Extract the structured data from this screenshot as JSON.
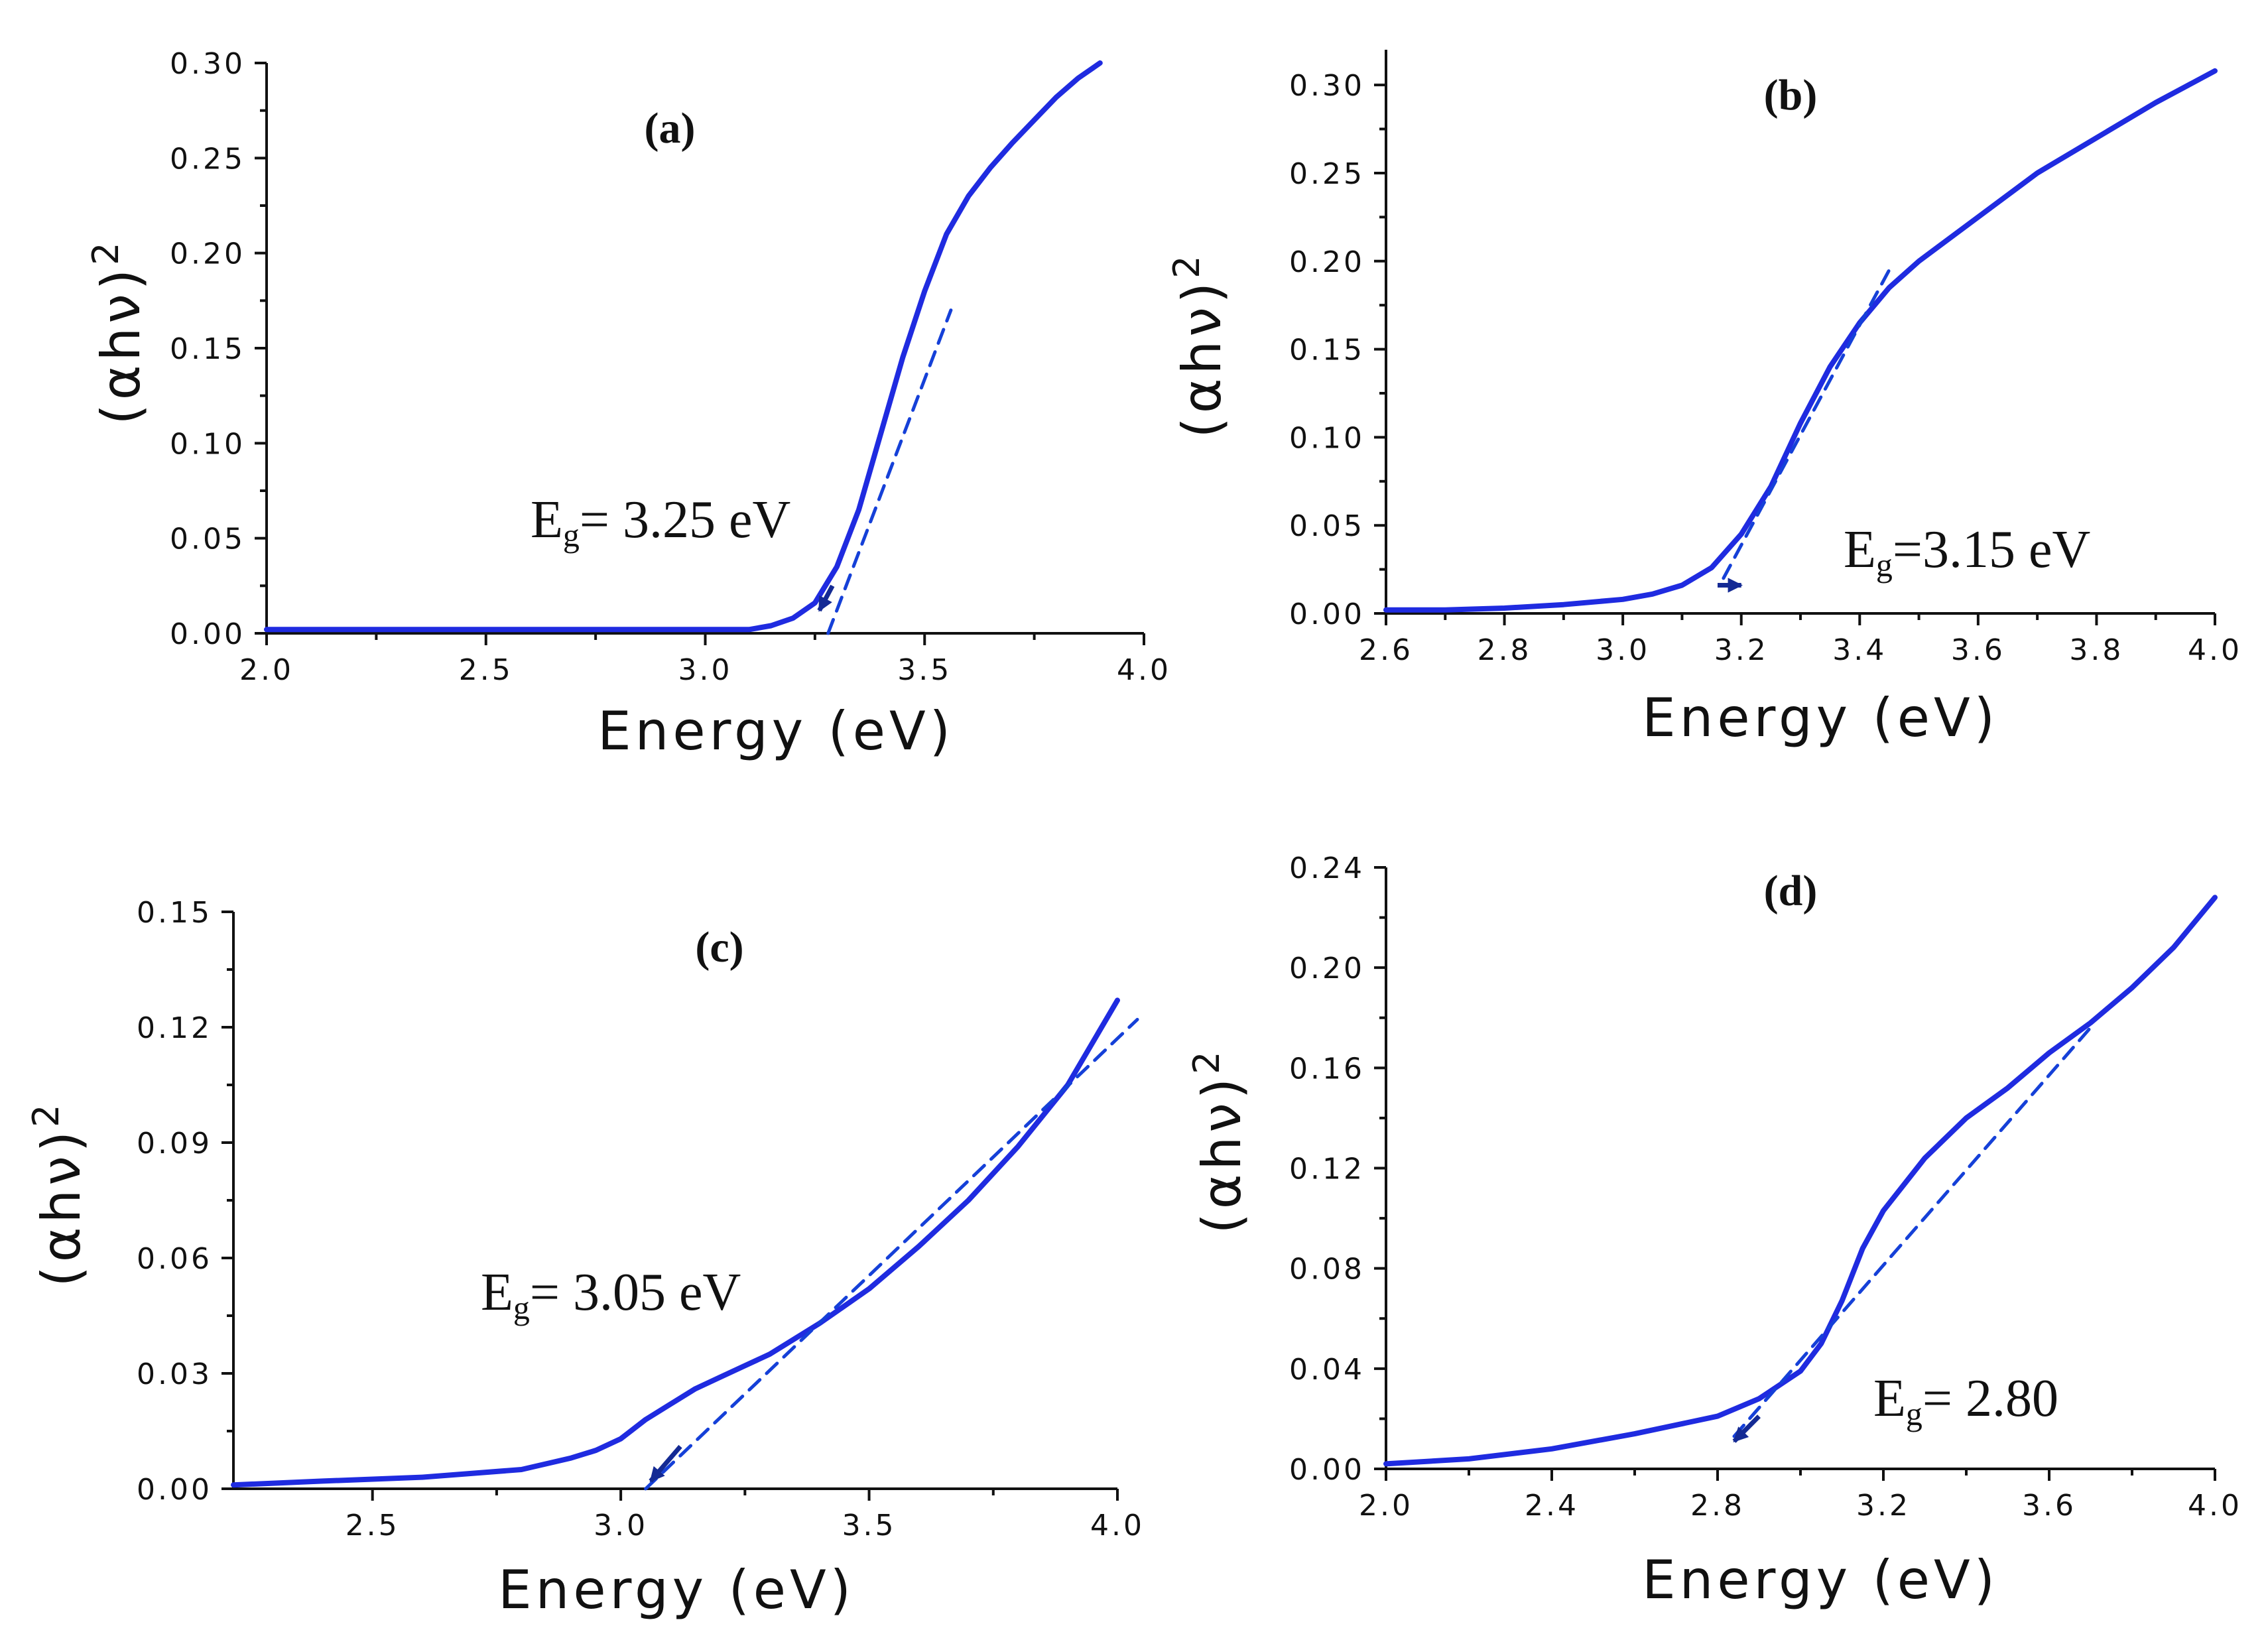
{
  "chart_data": [
    {
      "id": "a",
      "type": "line",
      "panel_label": "(a)",
      "xlabel": "Energy (eV)",
      "ylabel": "(αhν)",
      "ylabel_sup": "2",
      "xlim": [
        2.0,
        4.0
      ],
      "ylim": [
        0.0,
        0.3
      ],
      "xticks": [
        2.0,
        2.5,
        3.0,
        3.5,
        4.0
      ],
      "xtick_labels": [
        "2.0",
        "2.5",
        "3.0",
        "3.5",
        "4.0"
      ],
      "yticks": [
        0.0,
        0.05,
        0.1,
        0.15,
        0.2,
        0.25,
        0.3
      ],
      "ytick_labels": [
        "0.00",
        "0.05",
        "0.10",
        "0.15",
        "0.20",
        "0.25",
        "0.30"
      ],
      "series": [
        {
          "name": "data",
          "style": "solid",
          "x": [
            2.0,
            2.5,
            3.0,
            3.1,
            3.15,
            3.2,
            3.25,
            3.3,
            3.35,
            3.4,
            3.45,
            3.5,
            3.55,
            3.6,
            3.65,
            3.7,
            3.75,
            3.8,
            3.85,
            3.9
          ],
          "y": [
            0.002,
            0.002,
            0.002,
            0.002,
            0.004,
            0.008,
            0.016,
            0.035,
            0.065,
            0.105,
            0.145,
            0.18,
            0.21,
            0.23,
            0.245,
            0.258,
            0.27,
            0.282,
            0.292,
            0.3
          ]
        },
        {
          "name": "fit",
          "style": "dashed",
          "x": [
            3.28,
            3.56
          ],
          "y": [
            0.0,
            0.17
          ]
        }
      ],
      "annotation": {
        "text_main": "E",
        "text_sub": "g",
        "text_rest": "= 3.25 eV",
        "x": 3.25,
        "y": 0.0
      },
      "arrow": {
        "x1": 3.29,
        "y1": 0.025,
        "x2": 3.26,
        "y2": 0.012
      }
    },
    {
      "id": "b",
      "type": "line",
      "panel_label": "(b)",
      "xlabel": "Energy (eV)",
      "ylabel": "(αhν)",
      "ylabel_sup": "2",
      "xlim": [
        2.6,
        4.0
      ],
      "ylim": [
        0.0,
        0.32
      ],
      "xticks": [
        2.6,
        2.8,
        3.0,
        3.2,
        3.4,
        3.6,
        3.8,
        4.0
      ],
      "xtick_labels": [
        "2.6",
        "2.8",
        "3.0",
        "3.2",
        "3.4",
        "3.6",
        "3.8",
        "4.0"
      ],
      "yticks": [
        0.0,
        0.05,
        0.1,
        0.15,
        0.2,
        0.25,
        0.3
      ],
      "ytick_labels": [
        "0.00",
        "0.05",
        "0.10",
        "0.15",
        "0.20",
        "0.25",
        "0.30"
      ],
      "series": [
        {
          "name": "data",
          "style": "solid",
          "x": [
            2.6,
            2.7,
            2.8,
            2.9,
            3.0,
            3.05,
            3.1,
            3.15,
            3.2,
            3.25,
            3.3,
            3.35,
            3.4,
            3.45,
            3.5,
            3.6,
            3.7,
            3.8,
            3.9,
            4.0
          ],
          "y": [
            0.002,
            0.002,
            0.003,
            0.005,
            0.008,
            0.011,
            0.016,
            0.026,
            0.045,
            0.072,
            0.108,
            0.14,
            0.165,
            0.185,
            0.2,
            0.225,
            0.25,
            0.27,
            0.29,
            0.308
          ]
        },
        {
          "name": "fit",
          "style": "dashed",
          "x": [
            3.17,
            3.45
          ],
          "y": [
            0.02,
            0.195
          ]
        }
      ],
      "annotation": {
        "text_main": "E",
        "text_sub": "g",
        "text_rest": "=3.15 eV",
        "x": 3.15,
        "y": 0.0
      },
      "arrow": {
        "x1": 3.16,
        "y1": 0.016,
        "x2": 3.2,
        "y2": 0.016
      }
    },
    {
      "id": "c",
      "type": "line",
      "panel_label": "(c)",
      "xlabel": "Energy (eV)",
      "ylabel": "(αhν)",
      "ylabel_sup": "2",
      "xlim": [
        2.22,
        4.0
      ],
      "ylim": [
        0.0,
        0.15
      ],
      "xticks": [
        2.5,
        3.0,
        3.5,
        4.0
      ],
      "xtick_labels": [
        "2.5",
        "3.0",
        "3.5",
        "4.0"
      ],
      "yticks": [
        0.0,
        0.03,
        0.06,
        0.09,
        0.12,
        0.15
      ],
      "ytick_labels": [
        "0.00",
        "0.03",
        "0.06",
        "0.09",
        "0.12",
        "0.15"
      ],
      "series": [
        {
          "name": "data",
          "style": "solid",
          "x": [
            2.22,
            2.4,
            2.6,
            2.8,
            2.9,
            2.95,
            3.0,
            3.05,
            3.1,
            3.15,
            3.2,
            3.25,
            3.3,
            3.4,
            3.5,
            3.6,
            3.7,
            3.8,
            3.9,
            4.0
          ],
          "y": [
            0.001,
            0.002,
            0.003,
            0.005,
            0.008,
            0.01,
            0.013,
            0.018,
            0.022,
            0.026,
            0.029,
            0.032,
            0.035,
            0.043,
            0.052,
            0.063,
            0.075,
            0.089,
            0.105,
            0.127
          ]
        },
        {
          "name": "fit",
          "style": "dashed",
          "x": [
            3.05,
            4.04
          ],
          "y": [
            0.0,
            0.122
          ]
        }
      ],
      "annotation": {
        "text_main": "E",
        "text_sub": "g",
        "text_rest": "= 3.05 eV",
        "x": 3.05,
        "y": 0.0
      },
      "arrow": {
        "x1": 3.12,
        "y1": 0.011,
        "x2": 3.06,
        "y2": 0.002
      }
    },
    {
      "id": "d",
      "type": "line",
      "panel_label": "(d)",
      "xlabel": "Energy (eV)",
      "ylabel": "(αhν)",
      "ylabel_sup": "2",
      "xlim": [
        2.0,
        4.0
      ],
      "ylim": [
        0.0,
        0.24
      ],
      "xticks": [
        2.0,
        2.4,
        2.8,
        3.2,
        3.6,
        4.0
      ],
      "xtick_labels": [
        "2.0",
        "2.4",
        "2.8",
        "3.2",
        "3.6",
        "4.0"
      ],
      "yticks": [
        0.0,
        0.04,
        0.08,
        0.12,
        0.16,
        0.2,
        0.24
      ],
      "ytick_labels": [
        "0.00",
        "0.04",
        "0.08",
        "0.12",
        "0.16",
        "0.20",
        "0.24"
      ],
      "series": [
        {
          "name": "data",
          "style": "solid",
          "x": [
            2.0,
            2.2,
            2.4,
            2.6,
            2.8,
            2.9,
            3.0,
            3.05,
            3.1,
            3.15,
            3.2,
            3.3,
            3.4,
            3.5,
            3.6,
            3.7,
            3.8,
            3.9,
            4.0
          ],
          "y": [
            0.002,
            0.004,
            0.008,
            0.014,
            0.021,
            0.028,
            0.039,
            0.05,
            0.067,
            0.088,
            0.103,
            0.124,
            0.14,
            0.152,
            0.166,
            0.178,
            0.192,
            0.208,
            0.228
          ]
        },
        {
          "name": "fit",
          "style": "dashed",
          "x": [
            2.84,
            3.71
          ],
          "y": [
            0.013,
            0.178
          ]
        }
      ],
      "annotation": {
        "text_main": "E",
        "text_sub": "g",
        "text_rest": "= 2.80",
        "x": 2.8,
        "y": 0.0
      },
      "arrow": {
        "x1": 2.9,
        "y1": 0.021,
        "x2": 2.84,
        "y2": 0.011
      }
    }
  ],
  "colors": {
    "curve": "#1f2be0",
    "fit": "#1540d8",
    "arrow": "#142a94",
    "axis": "#111111"
  }
}
